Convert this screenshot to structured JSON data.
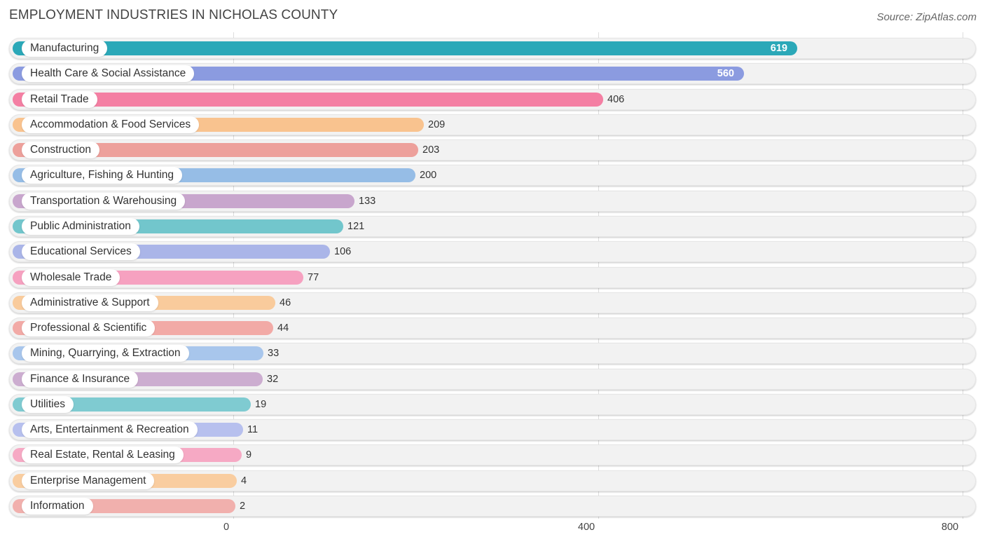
{
  "chart_data": {
    "type": "bar",
    "orientation": "horizontal",
    "title": "EMPLOYMENT INDUSTRIES IN NICHOLAS COUNTY",
    "source": "Source: ZipAtlas.com",
    "categories": [
      "Manufacturing",
      "Health Care & Social Assistance",
      "Retail Trade",
      "Accommodation & Food Services",
      "Construction",
      "Agriculture, Fishing & Hunting",
      "Transportation & Warehousing",
      "Public Administration",
      "Educational Services",
      "Wholesale Trade",
      "Administrative & Support",
      "Professional & Scientific",
      "Mining, Quarrying, & Extraction",
      "Finance & Insurance",
      "Utilities",
      "Arts, Entertainment & Recreation",
      "Real Estate, Rental & Leasing",
      "Enterprise Management",
      "Information"
    ],
    "values": [
      619,
      560,
      406,
      209,
      203,
      200,
      133,
      121,
      106,
      77,
      46,
      44,
      33,
      32,
      19,
      11,
      9,
      4,
      2
    ],
    "value_labels": [
      "619",
      "560",
      "406",
      "209",
      "203",
      "200",
      "133",
      "121",
      "106",
      "77",
      "46",
      "44",
      "33",
      "32",
      "19",
      "11",
      "9",
      "4",
      "2"
    ],
    "colors": [
      "#2ba8b8",
      "#8b9be0",
      "#f47fa3",
      "#f9c38f",
      "#eda09b",
      "#96bde6",
      "#c8a6cd",
      "#72c6cc",
      "#aab5e8",
      "#f6a1c0",
      "#f9cb9c",
      "#f2aaa6",
      "#a8c6ec",
      "#ccadd0",
      "#7fcbd1",
      "#b7c0ee",
      "#f6a9c4",
      "#f9cda0",
      "#f1b0ad"
    ],
    "xlim": [
      0,
      800
    ],
    "xticks": [
      0,
      400,
      800
    ],
    "xtick_labels": [
      "0",
      "400",
      "800"
    ],
    "xlabel": "",
    "ylabel": "",
    "grid": true
  }
}
